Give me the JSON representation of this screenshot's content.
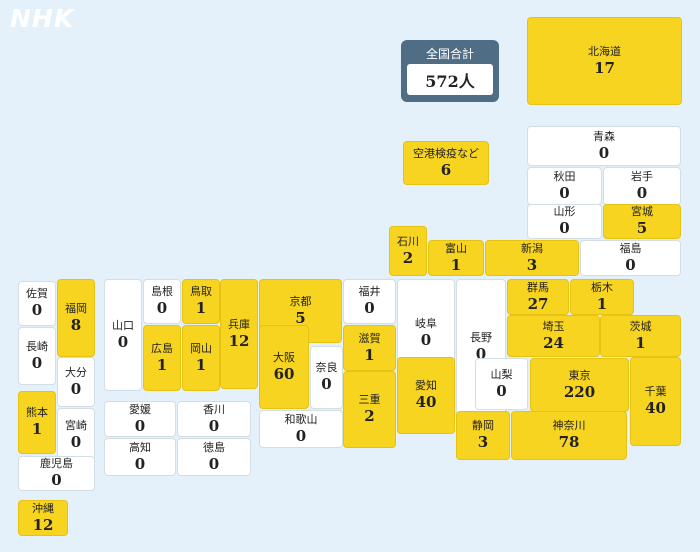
{
  "brand": "NHK",
  "total": {
    "label": "全国合計",
    "value": "572人"
  },
  "prefectures": [
    {
      "name": "北海道",
      "count": "17",
      "color": "#f7d41f"
    },
    {
      "name": "空港検疫など",
      "count": "6",
      "color": "#f7d41f"
    },
    {
      "name": "青森",
      "count": "0",
      "color": "#ffffff"
    },
    {
      "name": "秋田",
      "count": "0",
      "color": "#ffffff"
    },
    {
      "name": "岩手",
      "count": "0",
      "color": "#ffffff"
    },
    {
      "name": "山形",
      "count": "0",
      "color": "#ffffff"
    },
    {
      "name": "宮城",
      "count": "5",
      "color": "#f7d41f"
    },
    {
      "name": "石川",
      "count": "2",
      "color": "#f7d41f"
    },
    {
      "name": "富山",
      "count": "1",
      "color": "#f7d41f"
    },
    {
      "name": "新潟",
      "count": "3",
      "color": "#f7d41f"
    },
    {
      "name": "福島",
      "count": "0",
      "color": "#ffffff"
    },
    {
      "name": "佐賀",
      "count": "0",
      "color": "#ffffff"
    },
    {
      "name": "福岡",
      "count": "8",
      "color": "#f7d41f"
    },
    {
      "name": "山口",
      "count": "0",
      "color": "#ffffff"
    },
    {
      "name": "島根",
      "count": "0",
      "color": "#ffffff"
    },
    {
      "name": "鳥取",
      "count": "1",
      "color": "#f7d41f"
    },
    {
      "name": "兵庫",
      "count": "12",
      "color": "#f7d41f"
    },
    {
      "name": "京都",
      "count": "5",
      "color": "#f7d41f"
    },
    {
      "name": "福井",
      "count": "0",
      "color": "#ffffff"
    },
    {
      "name": "岐阜",
      "count": "0",
      "color": "#ffffff"
    },
    {
      "name": "長野",
      "count": "0",
      "color": "#ffffff"
    },
    {
      "name": "群馬",
      "count": "27",
      "color": "#f7d41f"
    },
    {
      "name": "栃木",
      "count": "1",
      "color": "#f7d41f"
    },
    {
      "name": "茨城",
      "count": "1",
      "color": "#f7d41f"
    },
    {
      "name": "長崎",
      "count": "0",
      "color": "#ffffff"
    },
    {
      "name": "大分",
      "count": "0",
      "color": "#ffffff"
    },
    {
      "name": "広島",
      "count": "1",
      "color": "#f7d41f"
    },
    {
      "name": "岡山",
      "count": "1",
      "color": "#f7d41f"
    },
    {
      "name": "大阪",
      "count": "60",
      "color": "#f7d41f"
    },
    {
      "name": "奈良",
      "count": "0",
      "color": "#ffffff"
    },
    {
      "name": "滋賀",
      "count": "1",
      "color": "#f7d41f"
    },
    {
      "name": "埼玉",
      "count": "24",
      "color": "#f7d41f"
    },
    {
      "name": "熊本",
      "count": "1",
      "color": "#f7d41f"
    },
    {
      "name": "宮崎",
      "count": "0",
      "color": "#ffffff"
    },
    {
      "name": "愛媛",
      "count": "0",
      "color": "#ffffff"
    },
    {
      "name": "香川",
      "count": "0",
      "color": "#ffffff"
    },
    {
      "name": "高知",
      "count": "0",
      "color": "#ffffff"
    },
    {
      "name": "徳島",
      "count": "0",
      "color": "#ffffff"
    },
    {
      "name": "和歌山",
      "count": "0",
      "color": "#ffffff"
    },
    {
      "name": "三重",
      "count": "2",
      "color": "#f7d41f"
    },
    {
      "name": "愛知",
      "count": "40",
      "color": "#f7d41f"
    },
    {
      "name": "山梨",
      "count": "0",
      "color": "#ffffff"
    },
    {
      "name": "東京",
      "count": "220",
      "color": "#f7d41f"
    },
    {
      "name": "千葉",
      "count": "40",
      "color": "#f7d41f"
    },
    {
      "name": "静岡",
      "count": "3",
      "color": "#f7d41f"
    },
    {
      "name": "神奈川",
      "count": "78",
      "color": "#f7d41f"
    },
    {
      "name": "鹿児島",
      "count": "0",
      "color": "#ffffff"
    },
    {
      "name": "沖縄",
      "count": "12",
      "color": "#f7d41f"
    }
  ]
}
